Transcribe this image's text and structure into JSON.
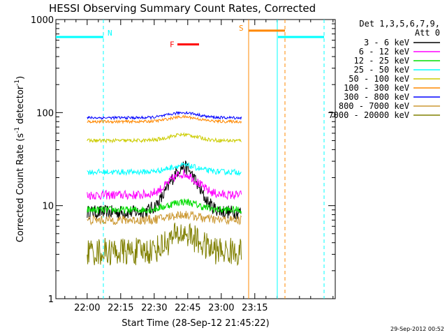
{
  "chart_data": {
    "type": "line",
    "title": "HESSI Observing Summary Count Rates, Corrected",
    "xlabel": "Start Time (28-Sep-12 21:45:22)",
    "ylabel_prefix": "Corrected Count Rate (s",
    "ylabel_sup": "-1",
    "ylabel_mid": " detector",
    "ylabel_suffix": ")",
    "y_scale": "log",
    "ylim": [
      1,
      1000
    ],
    "x_ticks": [
      "22:00",
      "22:15",
      "22:30",
      "22:45",
      "23:00",
      "23:15"
    ],
    "y_ticks": [
      "1",
      "10",
      "100",
      "1000"
    ],
    "xlim_minutes": [
      -14,
      111
    ],
    "legend_header": [
      "Det 1,3,5,6,7,9,",
      "Att 0"
    ],
    "timestamp": "29-Sep-2012 00:52",
    "flags": [
      {
        "label": "N",
        "color": "#00ffff"
      },
      {
        "label": "F",
        "color": "#ff0000"
      },
      {
        "label": "S",
        "color": "#ff8800"
      }
    ],
    "series": [
      {
        "name": "3 - 6 keV",
        "color": "#000000",
        "base": 8.5,
        "peak": 26,
        "noise": 0.15
      },
      {
        "name": "6 - 12 keV",
        "color": "#ff00ff",
        "base": 13,
        "peak": 22,
        "noise": 0.1
      },
      {
        "name": "12 - 25 keV",
        "color": "#00dd00",
        "base": 9,
        "peak": 11,
        "noise": 0.08
      },
      {
        "name": "25 - 50 keV",
        "color": "#00ffff",
        "base": 23,
        "peak": 27,
        "noise": 0.06
      },
      {
        "name": "50 - 100 keV",
        "color": "#cccc00",
        "base": 50,
        "peak": 58,
        "noise": 0.04
      },
      {
        "name": "100 - 300 keV",
        "color": "#ff8800",
        "base": 80,
        "peak": 90,
        "noise": 0.03
      },
      {
        "name": "300 - 800 keV",
        "color": "#0000ff",
        "base": 88,
        "peak": 100,
        "noise": 0.03
      },
      {
        "name": "800 - 7000 keV",
        "color": "#cc9933",
        "base": 7,
        "peak": 8,
        "noise": 0.1
      },
      {
        "name": "7000 - 20000 keV",
        "color": "#808000",
        "base": 3.2,
        "peak": 5,
        "noise": 0.3
      }
    ]
  }
}
